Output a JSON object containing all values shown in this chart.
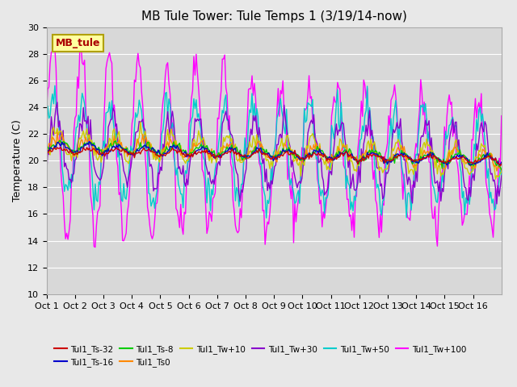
{
  "title": "MB Tule Tower: Tule Temps 1 (3/19/14-now)",
  "xlabel": "",
  "ylabel": "Temperature (C)",
  "ylim": [
    10,
    30
  ],
  "yticks": [
    10,
    12,
    14,
    16,
    18,
    20,
    22,
    24,
    26,
    28,
    30
  ],
  "x_labels": [
    "Oct 1",
    "Oct 2",
    "Oct 3",
    "Oct 4",
    "Oct 5",
    "Oct 6",
    "Oct 7",
    "Oct 8",
    "Oct 9",
    "Oct 10",
    "Oct 11",
    "Oct 12",
    "Oct 13",
    "Oct 14",
    "Oct 15",
    "Oct 16"
  ],
  "background_color": "#e8e8e8",
  "plot_bg_color": "#d8d8d8",
  "grid_color": "#ffffff",
  "legend_label": "MB_tule",
  "legend_box_color": "#ffffa0",
  "legend_box_edge": "#b0a000",
  "series": [
    {
      "label": "Tul1_Ts-32",
      "color": "#cc0000"
    },
    {
      "label": "Tul1_Ts-16",
      "color": "#0000cc"
    },
    {
      "label": "Tul1_Ts-8",
      "color": "#00cc00"
    },
    {
      "label": "Tul1_Ts0",
      "color": "#ff8800"
    },
    {
      "label": "Tul1_Tw+10",
      "color": "#cccc00"
    },
    {
      "label": "Tul1_Tw+30",
      "color": "#8800cc"
    },
    {
      "label": "Tul1_Tw+50",
      "color": "#00cccc"
    },
    {
      "label": "Tul1_Tw+100",
      "color": "#ff00ff"
    }
  ]
}
